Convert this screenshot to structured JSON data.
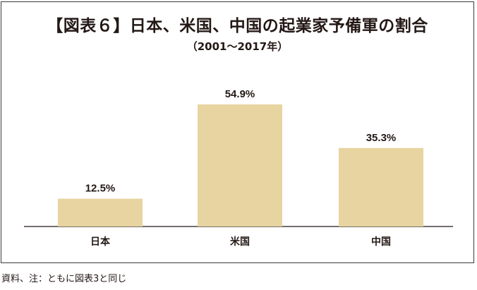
{
  "title": "【図表６】日本、米国、中国の起業家予備軍の割合",
  "subtitle": "（2001～2017年）",
  "source": "資料、注：ともに図表3と同じ",
  "colors": {
    "bar": "#e8d4a0",
    "text": "#231815",
    "axis": "#231815",
    "frame": "#3a3a3a"
  },
  "chart_data": {
    "type": "bar",
    "categories": [
      "日本",
      "米国",
      "中国"
    ],
    "values": [
      12.5,
      54.9,
      35.3
    ],
    "value_labels": [
      "12.5%",
      "54.9%",
      "35.3%"
    ],
    "ylim": [
      0,
      60
    ],
    "grid": false,
    "legend": "none"
  }
}
